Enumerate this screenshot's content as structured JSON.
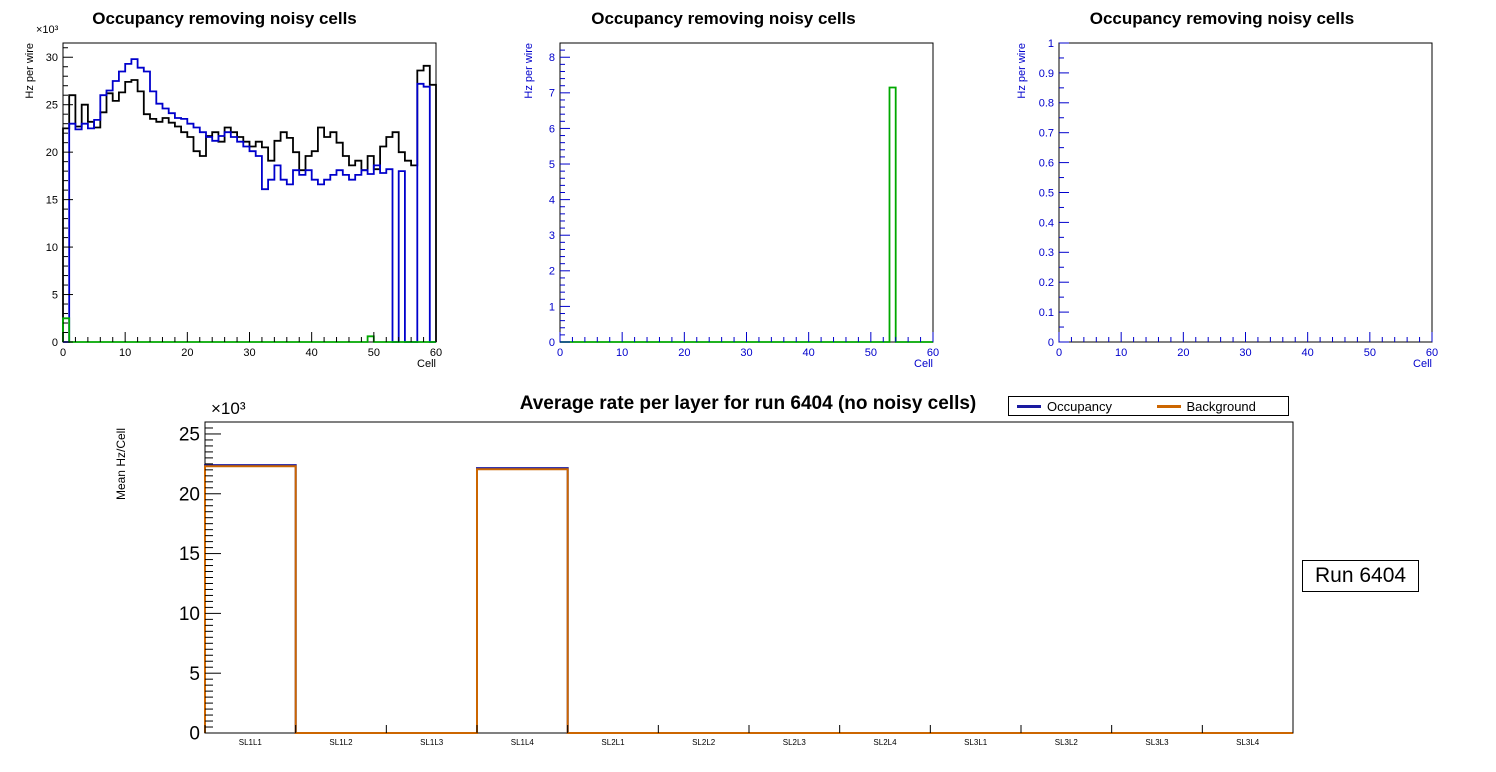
{
  "annotations": {
    "run_label": "Run 6404"
  },
  "chart_data": [
    {
      "name": "occupancy-1",
      "type": "step-histogram",
      "title": "Occupancy removing noisy cells",
      "xlabel": "Cell",
      "ylabel": "Hz per wire",
      "power_label": "×10³",
      "xlim": [
        0,
        60
      ],
      "ylim": [
        0,
        31.5
      ],
      "xticks": [
        0,
        10,
        20,
        30,
        40,
        50,
        60
      ],
      "yticks": [
        0,
        5,
        10,
        15,
        20,
        25,
        30
      ],
      "axis_color": "#000000",
      "grid": false,
      "series": [
        {
          "name": "occupancy-black",
          "color": "#000000",
          "values": [
            22.5,
            26.0,
            22.7,
            25.0,
            23.2,
            22.6,
            24.2,
            26.2,
            25.4,
            26.3,
            27.4,
            27.6,
            26.4,
            24.0,
            23.5,
            23.2,
            23.6,
            23.1,
            22.7,
            22.1,
            21.6,
            20.1,
            19.6,
            21.7,
            22.1,
            21.1,
            22.6,
            22.1,
            21.6,
            21.1,
            20.6,
            21.1,
            20.5,
            19.1,
            21.2,
            22.1,
            21.5,
            20.0,
            18.1,
            19.6,
            20.1,
            22.6,
            21.6,
            22.1,
            21.0,
            19.6,
            18.6,
            19.1,
            18.1,
            19.6,
            18.2,
            20.6,
            21.6,
            22.1,
            20.0,
            19.1,
            18.6,
            28.6,
            29.1,
            27.1
          ]
        },
        {
          "name": "occupancy-blue",
          "color": "#0000cc",
          "values": [
            0,
            23.0,
            22.4,
            23.0,
            22.5,
            23.4,
            26.0,
            26.5,
            27.5,
            28.5,
            29.3,
            29.8,
            28.9,
            28.5,
            26.4,
            25.1,
            24.6,
            24.1,
            23.6,
            23.5,
            23.0,
            22.6,
            22.1,
            21.6,
            21.2,
            21.7,
            22.1,
            21.6,
            21.1,
            20.6,
            20.1,
            19.6,
            16.1,
            17.1,
            18.6,
            17.1,
            16.6,
            18.1,
            17.6,
            18.1,
            17.1,
            16.6,
            17.1,
            17.6,
            18.1,
            17.6,
            17.1,
            17.6,
            18.1,
            17.7,
            18.6,
            17.8,
            18.2,
            0,
            18.0,
            0,
            0,
            27.2,
            26.9,
            0
          ]
        },
        {
          "name": "noisy-green",
          "color": "#00a800",
          "values": [
            2.5,
            0,
            0,
            0,
            0,
            0,
            0,
            0,
            0,
            0,
            0,
            0,
            0,
            0,
            0,
            0,
            0,
            0,
            0,
            0,
            0,
            0,
            0,
            0,
            0,
            0,
            0,
            0,
            0,
            0,
            0,
            0,
            0,
            0,
            0,
            0,
            0,
            0,
            0,
            0,
            0,
            0,
            0,
            0,
            0,
            0,
            0,
            0,
            0,
            0.6,
            0,
            0,
            0,
            0,
            0,
            0,
            0,
            0,
            0,
            0
          ]
        }
      ]
    },
    {
      "name": "occupancy-2",
      "type": "step-histogram",
      "title": "Occupancy removing noisy cells",
      "xlabel": "Cell",
      "ylabel": "Hz per wire",
      "xlim": [
        0,
        60
      ],
      "ylim": [
        0,
        8.4
      ],
      "xticks": [
        0,
        10,
        20,
        30,
        40,
        50,
        60
      ],
      "yticks": [
        0,
        1,
        2,
        3,
        4,
        5,
        6,
        7,
        8
      ],
      "axis_color": "#0000cc",
      "grid": false,
      "series": [
        {
          "name": "noisy-green",
          "color": "#00a800",
          "values": [
            0,
            0,
            0,
            0,
            0,
            0,
            0,
            0,
            0,
            0,
            0,
            0,
            0,
            0,
            0,
            0,
            0,
            0,
            0,
            0,
            0,
            0,
            0,
            0,
            0,
            0,
            0,
            0,
            0,
            0,
            0,
            0,
            0,
            0,
            0,
            0,
            0,
            0,
            0,
            0,
            0,
            0,
            0,
            0,
            0,
            0,
            0,
            0,
            0,
            0,
            0,
            0,
            0,
            7.15,
            0,
            0,
            0,
            0,
            0,
            0
          ]
        }
      ]
    },
    {
      "name": "occupancy-3",
      "type": "step-histogram",
      "title": "Occupancy removing noisy cells",
      "xlabel": "Cell",
      "ylabel": "Hz per wire",
      "xlim": [
        0,
        60
      ],
      "ylim": [
        0,
        1
      ],
      "xticks": [
        0,
        10,
        20,
        30,
        40,
        50,
        60
      ],
      "yticks": [
        0,
        0.1,
        0.2,
        0.3,
        0.4,
        0.5,
        0.6,
        0.7,
        0.8,
        0.9,
        1
      ],
      "axis_color": "#0000cc",
      "grid": false,
      "series": []
    },
    {
      "name": "average-rate-per-layer",
      "type": "step-histogram",
      "title": "Average rate per layer for run 6404 (no noisy cells)",
      "ylabel": "Mean Hz/Cell",
      "power_label": "×10³",
      "categories": [
        "SL1L1",
        "SL1L2",
        "SL1L3",
        "SL1L4",
        "SL2L1",
        "SL2L2",
        "SL2L3",
        "SL2L4",
        "SL3L1",
        "SL3L2",
        "SL3L3",
        "SL3L4"
      ],
      "ylim": [
        0,
        26
      ],
      "yticks": [
        0,
        5,
        10,
        15,
        20,
        25
      ],
      "axis_color": "#000000",
      "grid": false,
      "legend_position": "top-right",
      "series": [
        {
          "name": "Occupancy",
          "color": "#1a1aa0",
          "values": [
            22.4,
            0,
            0,
            22.15,
            0,
            0,
            0,
            0,
            0,
            0,
            0,
            0
          ]
        },
        {
          "name": "Background",
          "color": "#cc6600",
          "values": [
            22.3,
            0,
            0,
            22.05,
            0,
            0,
            0,
            0,
            0,
            0,
            0,
            0
          ]
        }
      ],
      "legend": [
        {
          "label": "Occupancy",
          "color": "#1a1aa0"
        },
        {
          "label": "Background",
          "color": "#cc6600"
        }
      ]
    }
  ]
}
